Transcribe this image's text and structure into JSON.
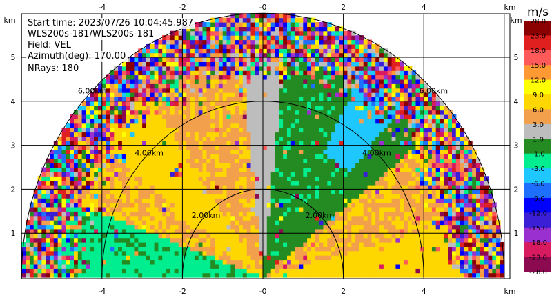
{
  "info": {
    "start_time": "Start time: 2023/07/26 10:04:45.987",
    "instrument": "WLS200s-181/WLS200s-181",
    "field": "Field: VEL",
    "azimuth": "Azimuth(deg): 170.00",
    "nrays": "NRays: 180"
  },
  "colorbar": {
    "unit": "m/s",
    "levels": [
      "-28.0",
      "-23.0",
      "-18.0",
      "-15.0",
      "-12.0",
      "-9.0",
      "-6.0",
      "-3.0",
      "-1.0",
      "1.0",
      "3.0",
      "6.0",
      "9.0",
      "12.0",
      "15.0",
      "18.0",
      "23.0",
      "28.0"
    ],
    "colors": [
      "#8b0a50",
      "#d81b60",
      "#9b30d0",
      "#3a1fd6",
      "#0000ff",
      "#1f6fff",
      "#1ec8ff",
      "#00ee90",
      "#238b22",
      "#bdbdbd",
      "#f2a04c",
      "#ffd700",
      "#ffff00",
      "#ff9933",
      "#ff5a5a",
      "#e0201e",
      "#8b0000"
    ]
  },
  "chart_data": {
    "type": "heatmap",
    "projection": "RHI semicircle",
    "x_unit": "km",
    "y_unit": "km",
    "xlim": [
      -6,
      6
    ],
    "ylim": [
      0,
      5.6
    ],
    "x_ticks": [
      "-4",
      "-2",
      "-0",
      "2",
      "4"
    ],
    "y_ticks": [
      "1",
      "2",
      "3",
      "4",
      "5"
    ],
    "range_rings": [
      {
        "radius_km": 2,
        "label": "2.00km"
      },
      {
        "radius_km": 4,
        "label": "4.00km"
      },
      {
        "radius_km": 6,
        "label": "6.00km"
      }
    ],
    "max_range_km": 6,
    "regions": [
      {
        "sector": "left-low",
        "velocity": "-6 to -3"
      },
      {
        "sector": "left-mid",
        "velocity": "6 to 9"
      },
      {
        "sector": "vertical",
        "velocity": "-1 to 1"
      },
      {
        "sector": "right-mid",
        "velocity": "-3 to -1"
      },
      {
        "sector": "right-low",
        "velocity": "6 to 9"
      },
      {
        "sector": "outer",
        "velocity": "noise"
      }
    ]
  }
}
